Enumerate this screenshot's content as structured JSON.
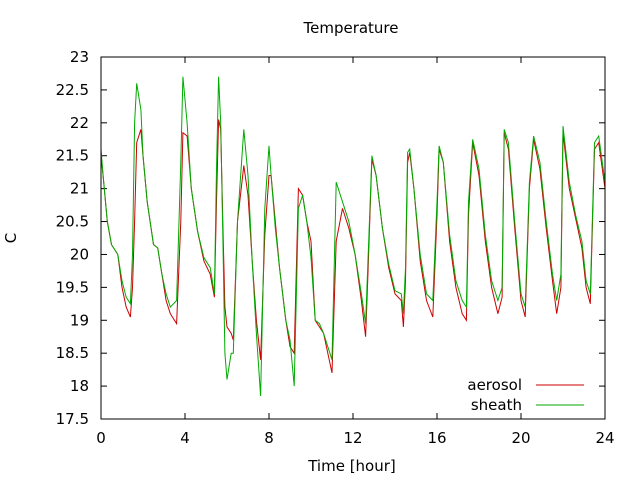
{
  "chart_data": {
    "type": "line",
    "title": "Temperature",
    "xlabel": "Time [hour]",
    "ylabel": "C",
    "xlim": [
      0,
      24
    ],
    "ylim": [
      17.5,
      23
    ],
    "xticks": [
      0,
      4,
      8,
      12,
      16,
      20,
      24
    ],
    "xtick_labels": [
      "0",
      "4",
      "8",
      "12",
      "16",
      "20",
      "24"
    ],
    "yticks": [
      17.5,
      18,
      18.5,
      19,
      19.5,
      20,
      20.5,
      21,
      21.5,
      22,
      22.5,
      23
    ],
    "ytick_labels": [
      "17.5",
      "18",
      "18.5",
      "19",
      "19.5",
      "20",
      "20.5",
      "21",
      "21.5",
      "22",
      "22.5",
      "23"
    ],
    "grid": false,
    "legend_position": "bottom-right",
    "series": [
      {
        "name": "aerosol",
        "color": "#cc0000",
        "x": [
          0,
          0.1,
          0.3,
          0.5,
          0.8,
          1.0,
          1.2,
          1.4,
          1.5,
          1.6,
          1.7,
          1.9,
          2.0,
          2.2,
          2.5,
          2.7,
          2.9,
          3.1,
          3.3,
          3.6,
          3.8,
          3.9,
          4.1,
          4.3,
          4.6,
          4.9,
          5.2,
          5.4,
          5.5,
          5.6,
          5.7,
          5.8,
          5.9,
          6.0,
          6.2,
          6.3,
          6.5,
          6.8,
          7.0,
          7.2,
          7.4,
          7.6,
          7.8,
          8.0,
          8.1,
          8.3,
          8.5,
          8.8,
          9.0,
          9.2,
          9.4,
          9.6,
          9.8,
          10.0,
          10.2,
          10.4,
          10.6,
          10.8,
          11.0,
          11.2,
          11.5,
          11.8,
          12.1,
          12.4,
          12.6,
          12.7,
          12.9,
          13.1,
          13.4,
          13.7,
          14.0,
          14.3,
          14.4,
          14.5,
          14.6,
          14.7,
          14.9,
          15.2,
          15.5,
          15.8,
          16.0,
          16.1,
          16.3,
          16.6,
          16.9,
          17.2,
          17.4,
          17.5,
          17.7,
          18.0,
          18.3,
          18.6,
          18.9,
          19.1,
          19.2,
          19.4,
          19.7,
          20.0,
          20.2,
          20.4,
          20.6,
          20.9,
          21.2,
          21.5,
          21.7,
          21.9,
          22.0,
          22.3,
          22.6,
          22.9,
          23.1,
          23.3,
          23.5,
          23.7,
          24.0
        ],
        "values": [
          21.5,
          21.2,
          20.5,
          20.15,
          20.0,
          19.5,
          19.2,
          19.05,
          19.5,
          20.5,
          21.7,
          21.9,
          21.5,
          20.8,
          20.15,
          20.1,
          19.7,
          19.3,
          19.1,
          18.95,
          20.5,
          21.85,
          21.8,
          21.0,
          20.35,
          19.9,
          19.7,
          19.35,
          20.8,
          22.05,
          21.9,
          20.5,
          19.2,
          18.9,
          18.8,
          18.7,
          20.5,
          21.35,
          20.9,
          19.9,
          19.0,
          18.4,
          20.3,
          21.2,
          21.2,
          20.5,
          19.8,
          19.0,
          18.6,
          18.5,
          21.0,
          20.9,
          20.5,
          20.2,
          19.0,
          18.9,
          18.8,
          18.5,
          18.2,
          20.2,
          20.7,
          20.4,
          20.0,
          19.3,
          18.75,
          19.6,
          21.45,
          21.2,
          20.4,
          19.8,
          19.4,
          19.3,
          18.9,
          19.6,
          21.4,
          21.55,
          21.0,
          19.9,
          19.3,
          19.05,
          20.6,
          21.6,
          21.4,
          20.2,
          19.5,
          19.1,
          19.0,
          20.6,
          21.7,
          21.2,
          20.2,
          19.5,
          19.1,
          19.35,
          21.85,
          21.6,
          20.4,
          19.3,
          19.05,
          21.0,
          21.75,
          21.3,
          20.4,
          19.6,
          19.1,
          19.5,
          21.85,
          21.0,
          20.55,
          20.1,
          19.5,
          19.25,
          21.6,
          21.7,
          21.0
        ]
      },
      {
        "name": "sheath",
        "color": "#00aa00",
        "x": [
          0,
          0.1,
          0.3,
          0.5,
          0.8,
          1.0,
          1.2,
          1.4,
          1.5,
          1.6,
          1.7,
          1.9,
          2.0,
          2.2,
          2.5,
          2.7,
          2.9,
          3.1,
          3.3,
          3.6,
          3.8,
          3.9,
          4.1,
          4.3,
          4.6,
          4.9,
          5.2,
          5.4,
          5.5,
          5.6,
          5.7,
          5.8,
          5.9,
          6.0,
          6.2,
          6.3,
          6.5,
          6.8,
          7.0,
          7.2,
          7.4,
          7.6,
          7.8,
          8.0,
          8.1,
          8.3,
          8.5,
          8.8,
          9.0,
          9.2,
          9.4,
          9.6,
          9.8,
          10.0,
          10.2,
          10.4,
          10.6,
          10.8,
          11.0,
          11.2,
          11.5,
          11.8,
          12.1,
          12.4,
          12.6,
          12.7,
          12.9,
          13.1,
          13.4,
          13.7,
          14.0,
          14.3,
          14.4,
          14.5,
          14.6,
          14.7,
          14.9,
          15.2,
          15.5,
          15.8,
          16.0,
          16.1,
          16.3,
          16.6,
          16.9,
          17.2,
          17.4,
          17.5,
          17.7,
          18.0,
          18.3,
          18.6,
          18.9,
          19.1,
          19.2,
          19.4,
          19.7,
          20.0,
          20.2,
          20.4,
          20.6,
          20.9,
          21.2,
          21.5,
          21.7,
          21.9,
          22.0,
          22.3,
          22.6,
          22.9,
          23.1,
          23.3,
          23.5,
          23.7,
          24.0
        ],
        "values": [
          21.6,
          21.2,
          20.5,
          20.15,
          20.0,
          19.6,
          19.35,
          19.25,
          20.0,
          22.0,
          22.6,
          22.2,
          21.5,
          20.8,
          20.15,
          20.1,
          19.7,
          19.4,
          19.2,
          19.3,
          21.4,
          22.7,
          22.0,
          21.0,
          20.35,
          19.95,
          19.8,
          19.4,
          21.3,
          22.7,
          22.0,
          20.3,
          18.5,
          18.1,
          18.5,
          18.5,
          20.5,
          21.9,
          21.2,
          19.9,
          18.8,
          17.85,
          20.7,
          21.65,
          21.2,
          20.4,
          19.8,
          19.0,
          18.7,
          18.0,
          20.7,
          20.9,
          20.5,
          19.95,
          19.0,
          18.95,
          18.8,
          18.6,
          18.4,
          21.1,
          20.8,
          20.5,
          20.0,
          19.4,
          18.95,
          19.8,
          21.5,
          21.2,
          20.4,
          19.85,
          19.45,
          19.4,
          19.1,
          19.8,
          21.55,
          21.6,
          21.0,
          20.0,
          19.4,
          19.3,
          20.8,
          21.65,
          21.4,
          20.3,
          19.6,
          19.3,
          19.2,
          20.8,
          21.75,
          21.3,
          20.3,
          19.6,
          19.3,
          19.5,
          21.9,
          21.7,
          20.5,
          19.4,
          19.2,
          21.1,
          21.8,
          21.4,
          20.5,
          19.7,
          19.3,
          19.7,
          21.95,
          21.1,
          20.6,
          20.2,
          19.6,
          19.4,
          21.7,
          21.8,
          21.1
        ]
      }
    ]
  }
}
